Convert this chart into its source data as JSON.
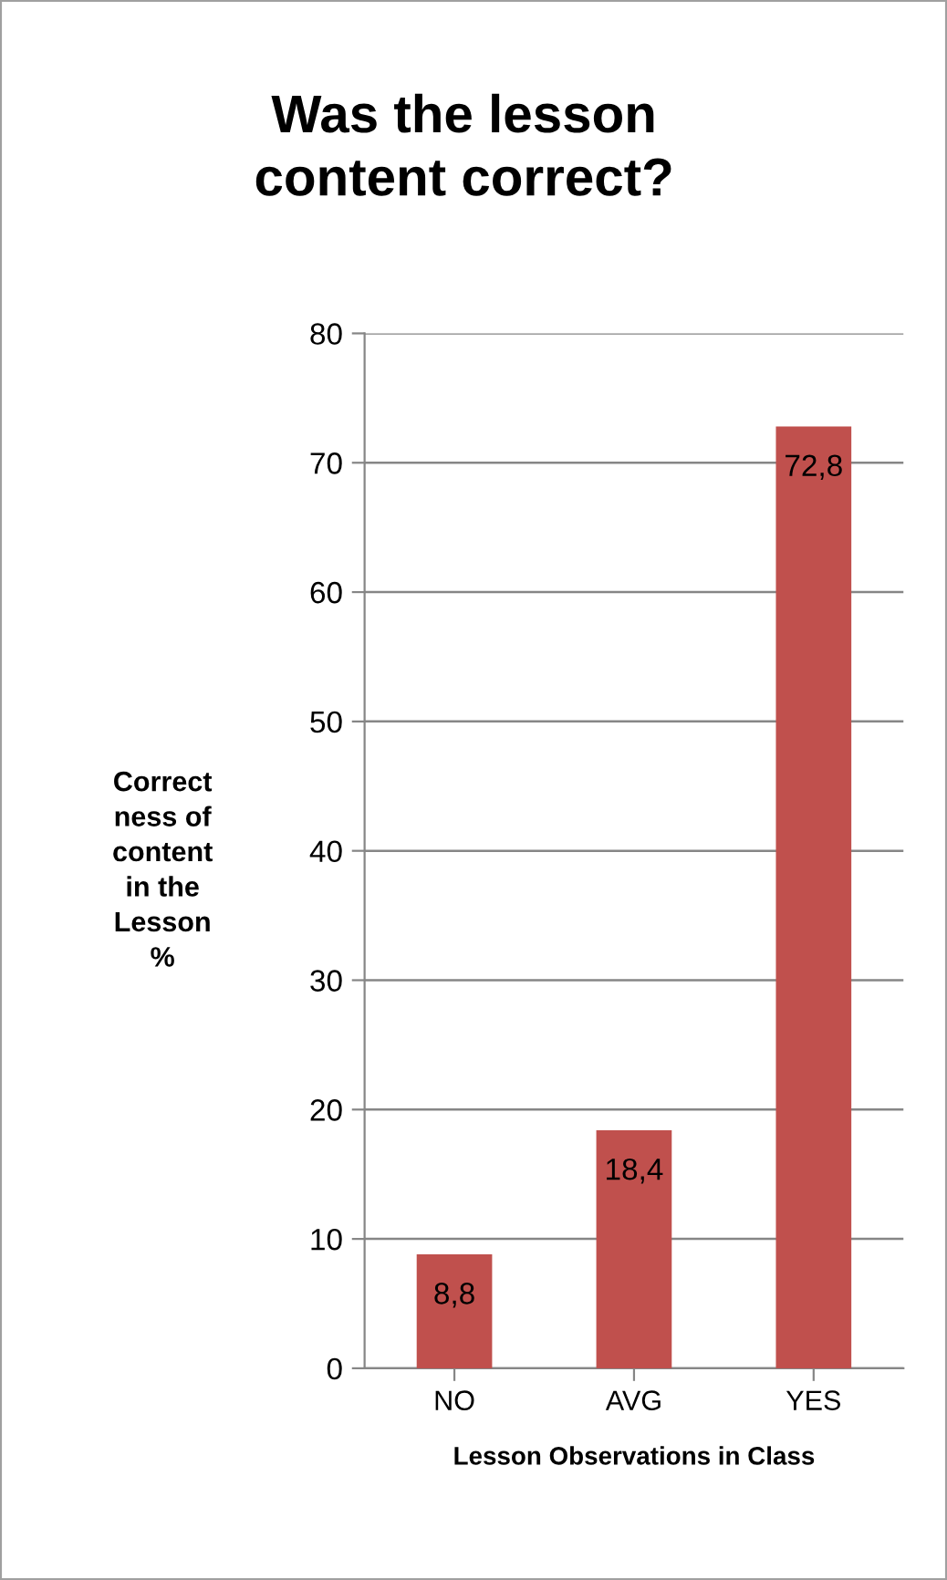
{
  "chart_data": {
    "type": "bar",
    "title": "Was the lesson\ncontent correct?",
    "xlabel": "Lesson Observations in Class",
    "ylabel": "Correct\nness of\ncontent\nin the\nLesson\n%",
    "categories": [
      "NO",
      "AVG",
      "YES"
    ],
    "values": [
      8.8,
      18.4,
      72.8
    ],
    "value_labels": [
      "8,8",
      "18,4",
      "72,8"
    ],
    "color": "#c0504d",
    "ylim": [
      0,
      80
    ],
    "yticks": [
      0,
      10,
      20,
      30,
      40,
      50,
      60,
      70,
      80
    ],
    "grid": "y"
  }
}
